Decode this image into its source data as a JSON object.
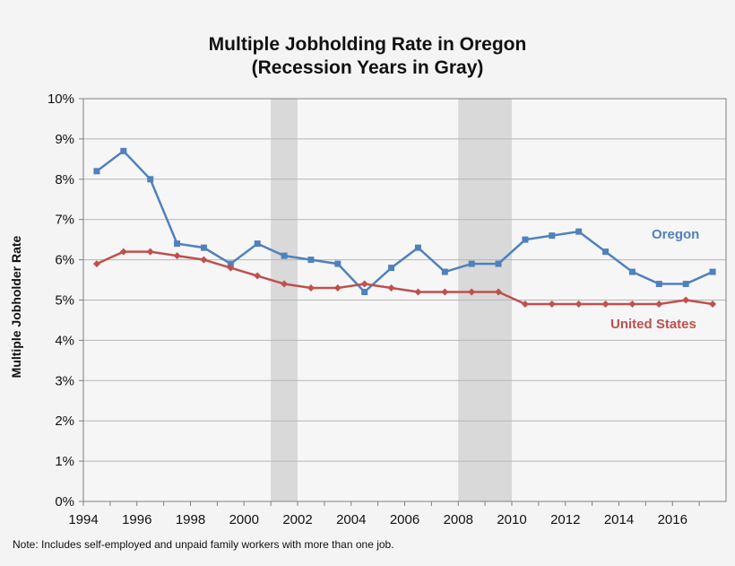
{
  "chart_data": {
    "type": "line",
    "title": "Multiple Jobholding Rate in Oregon",
    "subtitle": "(Recession Years in Gray)",
    "xlabel": "",
    "ylabel": "Multiple Jobholder Rate",
    "note": "Note: Includes self-employed and unpaid family workers with more than one job.",
    "x": [
      1994,
      1995,
      1996,
      1997,
      1998,
      1999,
      2000,
      2001,
      2002,
      2003,
      2004,
      2005,
      2006,
      2007,
      2008,
      2009,
      2010,
      2011,
      2012,
      2013,
      2014,
      2015,
      2016,
      2017
    ],
    "x_ticks": [
      "1994",
      "1996",
      "1998",
      "2000",
      "2002",
      "2004",
      "2006",
      "2008",
      "2010",
      "2012",
      "2014",
      "2016"
    ],
    "y_ticks": [
      "0%",
      "1%",
      "2%",
      "3%",
      "4%",
      "5%",
      "6%",
      "7%",
      "8%",
      "9%",
      "10%"
    ],
    "ylim": [
      0,
      10
    ],
    "grid": "horizontal",
    "recessions": [
      [
        2000.5,
        2001.5
      ],
      [
        2007.5,
        2009.5
      ]
    ],
    "series": [
      {
        "name": "Oregon",
        "color": "#4f81bd",
        "marker": "square",
        "values": [
          8.2,
          8.7,
          8.0,
          6.4,
          6.3,
          5.9,
          6.4,
          6.1,
          6.0,
          5.9,
          5.2,
          5.8,
          6.3,
          5.7,
          5.9,
          5.9,
          6.5,
          6.6,
          6.7,
          6.2,
          5.7,
          5.4,
          5.4,
          5.7
        ]
      },
      {
        "name": "United States",
        "color": "#c0504d",
        "marker": "diamond",
        "values": [
          5.9,
          6.2,
          6.2,
          6.1,
          6.0,
          5.8,
          5.6,
          5.4,
          5.3,
          5.3,
          5.4,
          5.3,
          5.2,
          5.2,
          5.2,
          5.2,
          4.9,
          4.9,
          4.9,
          4.9,
          4.9,
          4.9,
          5.0,
          4.9
        ]
      }
    ]
  }
}
